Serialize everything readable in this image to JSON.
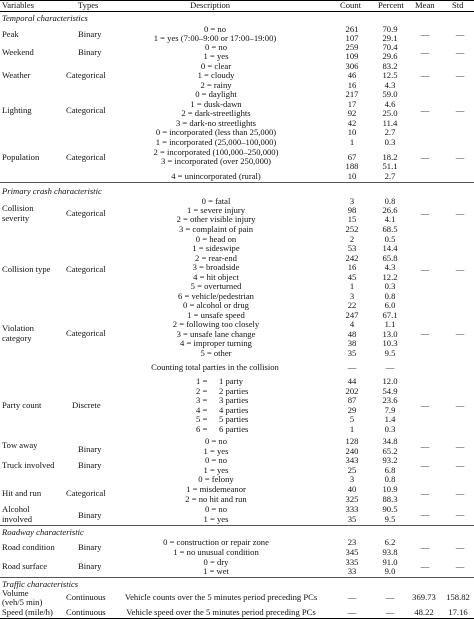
{
  "header": {
    "variables": "Variables",
    "types": "Types",
    "description": "Description",
    "count": "Count",
    "percent": "Percent",
    "mean": "Mean",
    "std": "Std"
  },
  "sections": {
    "temporal": "Temporal characteristics",
    "crash": "Primary crash characteristic",
    "roadway": "Roadway characteristic",
    "traffic": "Traffic characteristics"
  },
  "dash": "—",
  "rows": {
    "peak": {
      "name": "Peak",
      "type": "Binary",
      "opts": [
        {
          "desc": "0 = no",
          "count": "261",
          "pct": "70.9"
        },
        {
          "desc": "1 = yes (7:00–9:00 or 17:00–19:00)",
          "count": "107",
          "pct": "29.1"
        }
      ]
    },
    "weekend": {
      "name": "Weekend",
      "type": "Binary",
      "opts": [
        {
          "desc": "0 = no",
          "count": "259",
          "pct": "70.4"
        },
        {
          "desc": "1 = yes",
          "count": "109",
          "pct": "29.6"
        }
      ]
    },
    "weather": {
      "name": "Weather",
      "type": "Categorical",
      "opts": [
        {
          "desc": "0 = clear",
          "count": "306",
          "pct": "83.2"
        },
        {
          "desc": "1 = cloudy",
          "count": "46",
          "pct": "12.5"
        },
        {
          "desc": "2 = rainy",
          "count": "16",
          "pct": "4.3"
        }
      ]
    },
    "lighting": {
      "name": "Lighting",
      "type": "Categorical",
      "opts": [
        {
          "desc": "0 = daylight",
          "count": "217",
          "pct": "59.0"
        },
        {
          "desc": "1 = dusk-dawn",
          "count": "17",
          "pct": "4.6"
        },
        {
          "desc": "2 = dark-streetlights",
          "count": "92",
          "pct": "25.0"
        },
        {
          "desc": "3 = dark-no streetlights",
          "count": "42",
          "pct": "11.4"
        }
      ]
    },
    "population": {
      "name": "Population",
      "type": "Categorical",
      "opts": [
        {
          "desc": "0 = incorporated (less than 25,000)",
          "count": "10",
          "pct": "2.7"
        },
        {
          "desc": "1 = incorporated (25,000–100,000)",
          "count": "1",
          "pct": "0.3"
        },
        {
          "desc": "2 = incorporated (100,000–250,000)",
          "count": "67",
          "pct": "18.2"
        },
        {
          "desc": "3 = incorporated (over 250,000)",
          "count": "188",
          "pct": "51.1"
        },
        {
          "desc": "4 = unincorporated (rural)",
          "count": "10",
          "pct": "2.7"
        }
      ]
    },
    "severity": {
      "name1": "Collision",
      "name2": "severity",
      "type": "Categorical",
      "opts": [
        {
          "desc": "0 = fatal",
          "count": "3",
          "pct": "0.8"
        },
        {
          "desc": "1 = severe injury",
          "count": "98",
          "pct": "26.6"
        },
        {
          "desc": "2 = other visible injury",
          "count": "15",
          "pct": "4.1"
        },
        {
          "desc": "3 = complaint of pain",
          "count": "252",
          "pct": "68.5"
        }
      ]
    },
    "collision_type": {
      "name": "Collision type",
      "type": "Categorical",
      "opts": [
        {
          "desc": "0 = head on",
          "count": "2",
          "pct": "0.5"
        },
        {
          "desc": "1 = sideswipe",
          "count": "53",
          "pct": "14.4"
        },
        {
          "desc": "2 = rear-end",
          "count": "242",
          "pct": "65.8"
        },
        {
          "desc": "3 = broadside",
          "count": "16",
          "pct": "4.3"
        },
        {
          "desc": "4 = hit object",
          "count": "45",
          "pct": "12.2"
        },
        {
          "desc": "5 = overturned",
          "count": "1",
          "pct": "0.3"
        },
        {
          "desc": "6 = vehicle/pedestrian",
          "count": "3",
          "pct": "0.8"
        }
      ]
    },
    "violation": {
      "name1": "Violation",
      "name2": "category",
      "type": "Categorical",
      "opts": [
        {
          "desc": "0 = alcohol or drug",
          "count": "22",
          "pct": "6.0"
        },
        {
          "desc": "1 = unsafe speed",
          "count": "247",
          "pct": "67.1"
        },
        {
          "desc": "2 = following too closely",
          "count": "4",
          "pct": "1.1"
        },
        {
          "desc": "3 = unsafe lane change",
          "count": "48",
          "pct": "13.0"
        },
        {
          "desc": "4 = improper turning",
          "count": "38",
          "pct": "10.3"
        },
        {
          "desc": "5 = other",
          "count": "35",
          "pct": "9.5"
        }
      ]
    },
    "party": {
      "name": "Party count",
      "type": "Discrete",
      "counting": "Counting total parties in the collision",
      "opts": [
        {
          "desc": "1 party",
          "count": "44",
          "pct": "12.0"
        },
        {
          "desc": "2 parties",
          "count": "202",
          "pct": "54.9"
        },
        {
          "desc": "3 parties",
          "count": "87",
          "pct": "23.6"
        },
        {
          "desc": "4 parties",
          "count": "29",
          "pct": "7.9"
        },
        {
          "desc": "5 parties",
          "count": "5",
          "pct": "1.4"
        },
        {
          "desc": "6 parties",
          "count": "1",
          "pct": "0.3"
        }
      ],
      "prefixes": [
        "1 = ",
        "2 = ",
        "3 = ",
        "4 = ",
        "5 = ",
        "6 = "
      ]
    },
    "tow_away": {
      "name": "Tow away",
      "type": "Binary",
      "opts": [
        {
          "desc": "0 = no",
          "count": "128",
          "pct": "34.8"
        },
        {
          "desc": "1 = yes",
          "count": "240",
          "pct": "65.2"
        }
      ]
    },
    "truck": {
      "name": "Truck involved",
      "type": "Binary",
      "opts": [
        {
          "desc": "0 = no",
          "count": "343",
          "pct": "93.2"
        },
        {
          "desc": "1 = yes",
          "count": "25",
          "pct": "6.8"
        }
      ]
    },
    "hit_run": {
      "name": "Hit and run",
      "type": "Categorical",
      "opts": [
        {
          "desc": "0 = felony",
          "count": "3",
          "pct": "0.8"
        },
        {
          "desc": "1 = misdemeanor",
          "count": "40",
          "pct": "10.9"
        },
        {
          "desc": "2 = no hit and run",
          "count": "325",
          "pct": "88.3"
        }
      ]
    },
    "alcohol": {
      "name1": "Alcohol",
      "name2": "involved",
      "type": "Binary",
      "opts": [
        {
          "desc": "0 = no",
          "count": "333",
          "pct": "90.5"
        },
        {
          "desc": "1 = yes",
          "count": "35",
          "pct": "9.5"
        }
      ]
    },
    "road_condition": {
      "name": "Road condition",
      "type": "Binary",
      "opts": [
        {
          "desc": "0 = construction or repair zone",
          "count": "23",
          "pct": "6.2"
        },
        {
          "desc": "1 = no unusual condition",
          "count": "345",
          "pct": "93.8"
        }
      ]
    },
    "road_surface": {
      "name": "Road surface",
      "type": "Binary",
      "opts": [
        {
          "desc": "0 = dry",
          "count": "335",
          "pct": "91.0"
        },
        {
          "desc": "1 = wet",
          "count": "33",
          "pct": "9.0"
        }
      ]
    },
    "volume": {
      "name1": "Volume",
      "name2": "(veh/5 min)",
      "type": "Continuous",
      "desc": "Vehicle counts over the 5 minutes period preceding PCs",
      "mean": "369.73",
      "std": "158.82"
    },
    "speed": {
      "name": "Speed (mile/h)",
      "type": "Continuous",
      "desc": "Vehicle speed over the 5 minutes period preceding PCs",
      "mean": "48.22",
      "std": "17.16"
    }
  }
}
